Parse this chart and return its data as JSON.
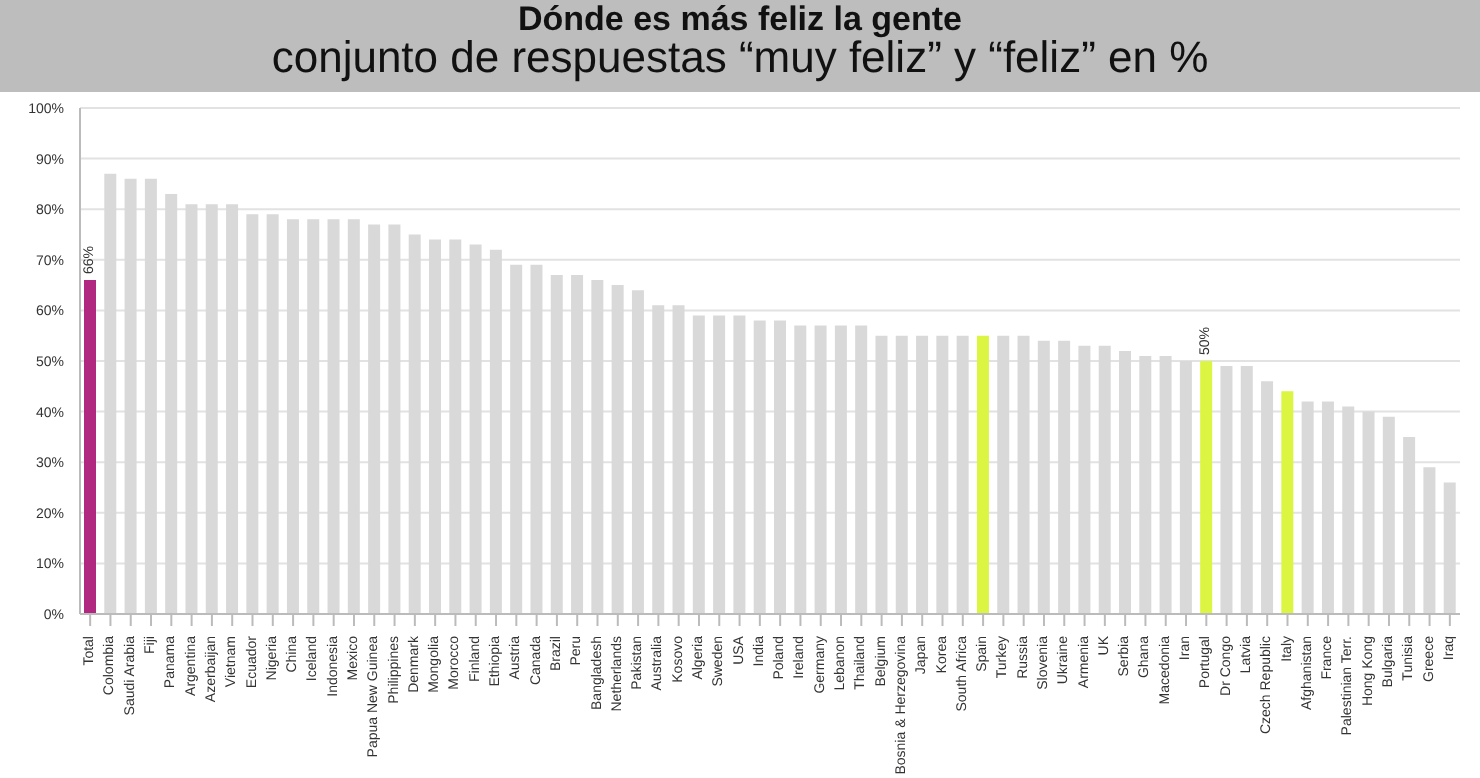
{
  "chart_data": {
    "type": "bar",
    "title": "Dónde es más feliz la gente",
    "subtitle": "conjunto de respuestas “muy feliz” y “feliz” en %",
    "categories": [
      "Total",
      "Colombia",
      "Saudi Arabia",
      "Fiji",
      "Panama",
      "Argentina",
      "Azerbaijan",
      "Vietnam",
      "Ecuador",
      "Nigeria",
      "China",
      "Iceland",
      "Indonesia",
      "Mexico",
      "Papua New Guinea",
      "Philippines",
      "Denmark",
      "Mongolia",
      "Morocco",
      "Finland",
      "Ethiopia",
      "Austria",
      "Canada",
      "Brazil",
      "Peru",
      "Bangladesh",
      "Netherlands",
      "Pakistan",
      "Australia",
      "Kosovo",
      "Algeria",
      "Sweden",
      "USA",
      "India",
      "Poland",
      "Ireland",
      "Germany",
      "Lebanon",
      "Thailand",
      "Belgium",
      "Bosnia & Herzegovina",
      "Japan",
      "Korea",
      "South Africa",
      "Spain",
      "Turkey",
      "Russia",
      "Slovenia",
      "Ukraine",
      "Armenia",
      "UK",
      "Serbia",
      "Ghana",
      "Macedonia",
      "Iran",
      "Portugal",
      "Dr Congo",
      "Latvia",
      "Czech Republic",
      "Italy",
      "Afghanistan",
      "France",
      "Palestinian Terr.",
      "Hong Kong",
      "Bulgaria",
      "Tunisia",
      "Greece",
      "Iraq"
    ],
    "values": [
      66,
      87,
      86,
      86,
      83,
      81,
      81,
      81,
      79,
      79,
      78,
      78,
      78,
      78,
      77,
      77,
      75,
      74,
      74,
      73,
      72,
      69,
      69,
      67,
      67,
      66,
      65,
      64,
      61,
      61,
      59,
      59,
      59,
      58,
      58,
      57,
      57,
      57,
      57,
      55,
      55,
      55,
      55,
      55,
      55,
      55,
      55,
      54,
      54,
      53,
      53,
      52,
      51,
      51,
      50,
      50,
      49,
      49,
      46,
      44,
      42,
      42,
      41,
      40,
      39,
      35,
      29,
      26
    ],
    "colors": [
      "#b0287f",
      "#d9d9d9",
      "#d9d9d9",
      "#d9d9d9",
      "#d9d9d9",
      "#d9d9d9",
      "#d9d9d9",
      "#d9d9d9",
      "#d9d9d9",
      "#d9d9d9",
      "#d9d9d9",
      "#d9d9d9",
      "#d9d9d9",
      "#d9d9d9",
      "#d9d9d9",
      "#d9d9d9",
      "#d9d9d9",
      "#d9d9d9",
      "#d9d9d9",
      "#d9d9d9",
      "#d9d9d9",
      "#d9d9d9",
      "#d9d9d9",
      "#d9d9d9",
      "#d9d9d9",
      "#d9d9d9",
      "#d9d9d9",
      "#d9d9d9",
      "#d9d9d9",
      "#d9d9d9",
      "#d9d9d9",
      "#d9d9d9",
      "#d9d9d9",
      "#d9d9d9",
      "#d9d9d9",
      "#d9d9d9",
      "#d9d9d9",
      "#d9d9d9",
      "#d9d9d9",
      "#d9d9d9",
      "#d9d9d9",
      "#d9d9d9",
      "#d9d9d9",
      "#d9d9d9",
      "#dcf542",
      "#d9d9d9",
      "#d9d9d9",
      "#d9d9d9",
      "#d9d9d9",
      "#d9d9d9",
      "#d9d9d9",
      "#d9d9d9",
      "#d9d9d9",
      "#d9d9d9",
      "#d9d9d9",
      "#dcf542",
      "#d9d9d9",
      "#d9d9d9",
      "#d9d9d9",
      "#dcf542",
      "#d9d9d9",
      "#d9d9d9",
      "#d9d9d9",
      "#d9d9d9",
      "#d9d9d9",
      "#d9d9d9",
      "#d9d9d9",
      "#d9d9d9"
    ],
    "value_labels": [
      "66%",
      null,
      null,
      null,
      null,
      null,
      null,
      null,
      null,
      null,
      null,
      null,
      null,
      null,
      null,
      null,
      null,
      null,
      null,
      null,
      null,
      null,
      null,
      null,
      null,
      null,
      null,
      null,
      null,
      null,
      null,
      null,
      null,
      null,
      null,
      null,
      null,
      null,
      null,
      null,
      null,
      null,
      null,
      null,
      null,
      null,
      null,
      null,
      null,
      null,
      null,
      null,
      null,
      null,
      null,
      "50%",
      null,
      null,
      null,
      null,
      null,
      null,
      null,
      null,
      null,
      null,
      null,
      null
    ],
    "ylim": [
      0,
      100
    ],
    "yticks": [
      {
        "value": 0,
        "label": "0%"
      },
      {
        "value": 10,
        "label": "10%"
      },
      {
        "value": 20,
        "label": "20%"
      },
      {
        "value": 30,
        "label": "30%"
      },
      {
        "value": 40,
        "label": "40%"
      },
      {
        "value": 50,
        "label": "50%"
      },
      {
        "value": 60,
        "label": "60%"
      },
      {
        "value": 70,
        "label": "70%"
      },
      {
        "value": 80,
        "label": "80%"
      },
      {
        "value": 90,
        "label": "90%"
      },
      {
        "value": 100,
        "label": "100%"
      }
    ],
    "grid": "y"
  }
}
